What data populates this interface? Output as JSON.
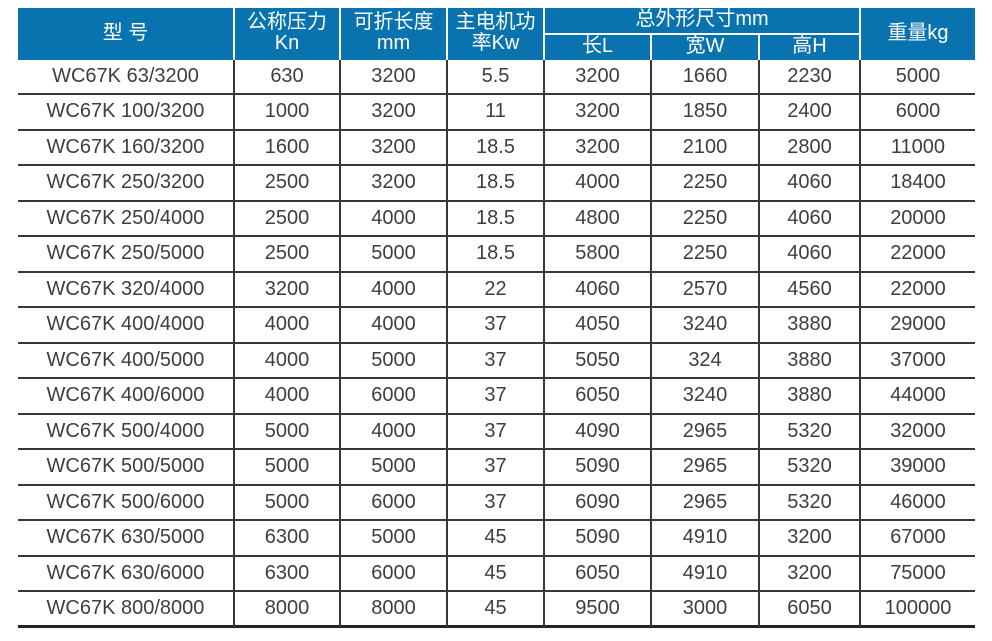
{
  "colors": {
    "header_bg": "#0973af",
    "header_text": "#ffffff",
    "cell_text": "#3e3e3e",
    "grid_line": "#383838",
    "page_bg": "#ffffff"
  },
  "table": {
    "header": {
      "model": "型 号",
      "pressure": [
        "公称压力",
        "Kn"
      ],
      "fold_length": [
        "可折长度",
        "mm"
      ],
      "motor_power": [
        "主电机功",
        "率Kw"
      ],
      "dims_group": "总外形尺寸mm",
      "dim_l": "长L",
      "dim_w": "宽W",
      "dim_h": "高H",
      "weight": "重量kg"
    }
  },
  "chart_data": {
    "type": "table",
    "columns": [
      "型号",
      "公称压力Kn",
      "可折长度mm",
      "主电机功率Kw",
      "总外形尺寸mm 长L",
      "总外形尺寸mm 宽W",
      "总外形尺寸mm 高H",
      "重量kg"
    ],
    "field_names": [
      "model",
      "pressure-kn",
      "fold-length-mm",
      "motor-power-kw",
      "dim-l",
      "dim-w",
      "dim-h",
      "weight-kg"
    ],
    "rows": [
      [
        "WC67K 63/3200",
        "630",
        "3200",
        "5.5",
        "3200",
        "1660",
        "2230",
        "5000"
      ],
      [
        "WC67K 100/3200",
        "1000",
        "3200",
        "11",
        "3200",
        "1850",
        "2400",
        "6000"
      ],
      [
        "WC67K 160/3200",
        "1600",
        "3200",
        "18.5",
        "3200",
        "2100",
        "2800",
        "11000"
      ],
      [
        "WC67K 250/3200",
        "2500",
        "3200",
        "18.5",
        "4000",
        "2250",
        "4060",
        "18400"
      ],
      [
        "WC67K 250/4000",
        "2500",
        "4000",
        "18.5",
        "4800",
        "2250",
        "4060",
        "20000"
      ],
      [
        "WC67K 250/5000",
        "2500",
        "5000",
        "18.5",
        "5800",
        "2250",
        "4060",
        "22000"
      ],
      [
        "WC67K 320/4000",
        "3200",
        "4000",
        "22",
        "4060",
        "2570",
        "4560",
        "22000"
      ],
      [
        "WC67K 400/4000",
        "4000",
        "4000",
        "37",
        "4050",
        "3240",
        "3880",
        "29000"
      ],
      [
        "WC67K 400/5000",
        "4000",
        "5000",
        "37",
        "5050",
        "324",
        "3880",
        "37000"
      ],
      [
        "WC67K 400/6000",
        "4000",
        "6000",
        "37",
        "6050",
        "3240",
        "3880",
        "44000"
      ],
      [
        "WC67K 500/4000",
        "5000",
        "4000",
        "37",
        "4090",
        "2965",
        "5320",
        "32000"
      ],
      [
        "WC67K 500/5000",
        "5000",
        "5000",
        "37",
        "5090",
        "2965",
        "5320",
        "39000"
      ],
      [
        "WC67K 500/6000",
        "5000",
        "6000",
        "37",
        "6090",
        "2965",
        "5320",
        "46000"
      ],
      [
        "WC67K 630/5000",
        "6300",
        "5000",
        "45",
        "5090",
        "4910",
        "3200",
        "67000"
      ],
      [
        "WC67K 630/6000",
        "6300",
        "6000",
        "45",
        "6050",
        "4910",
        "3200",
        "75000"
      ],
      [
        "WC67K 800/8000",
        "8000",
        "8000",
        "45",
        "9500",
        "3000",
        "6050",
        "100000"
      ]
    ]
  }
}
